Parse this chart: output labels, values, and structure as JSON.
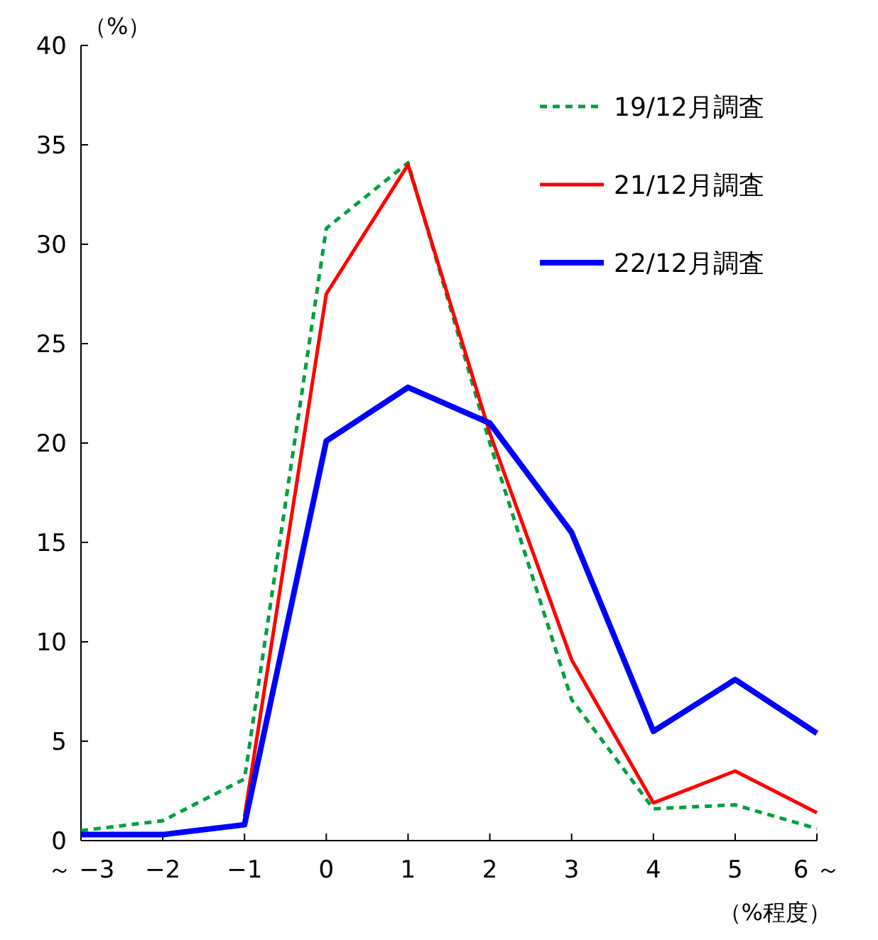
{
  "chart_data": {
    "type": "line",
    "ylabel": "（%）",
    "xlabel": "（%程度）",
    "categories": [
      "～ −3",
      "−2",
      "−1",
      "0",
      "1",
      "2",
      "3",
      "4",
      "5",
      "6 ～"
    ],
    "series": [
      {
        "name": "19/12月調査",
        "color": "#00a040",
        "line_style": "dashed",
        "values": [
          0.5,
          1.0,
          3.1,
          30.8,
          34.1,
          20.0,
          7.1,
          1.6,
          1.8,
          0.6
        ]
      },
      {
        "name": "21/12月調査",
        "color": "#ff0000",
        "line_style": "solid",
        "values": [
          null,
          null,
          1.2,
          27.5,
          34.0,
          20.5,
          9.1,
          1.9,
          3.5,
          1.4
        ]
      },
      {
        "name": "22/12月調査",
        "color": "#0000ff",
        "line_style": "solid",
        "values": [
          0.3,
          0.3,
          0.8,
          20.1,
          22.8,
          21.0,
          15.5,
          5.5,
          8.1,
          5.4
        ]
      }
    ],
    "ylim": [
      0,
      40
    ],
    "yticks": [
      0,
      5,
      10,
      15,
      20,
      25,
      30,
      35,
      40
    ],
    "grid": false,
    "legend": "top right",
    "marker": "none"
  }
}
